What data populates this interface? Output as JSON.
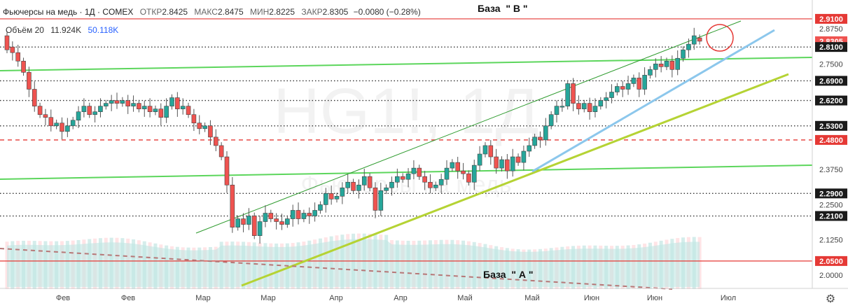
{
  "header": {
    "symbol": "Фьючерсы на медь · 1Д · COMEX",
    "open_label": "ОТКР",
    "open": "2.8425",
    "high_label": "МАКС",
    "high": "2.8475",
    "low_label": "МИН",
    "low": "2.8225",
    "close_label": "ЗАКР",
    "close": "2.8305",
    "change": "−0.0080 (−0.28%)"
  },
  "volume": {
    "label": "Объём 20",
    "value": "11.924K",
    "ma_value": "50.118K"
  },
  "annotations": {
    "base_b": "База  \" В \"",
    "base_a": "База  \" А \""
  },
  "watermark": {
    "main": "HG1!, 1Д",
    "sub": "Фьючерсы на медь"
  },
  "colors": {
    "up": "#26a69a",
    "down": "#ef5350",
    "level_line": "#e53935",
    "channel_green": "#5cd65c",
    "trend_yellow_green": "#b5d334",
    "trend_blue": "#8cc7ec",
    "channel_dark_green": "#2e9b2e",
    "volume_area": "#bfe6e3"
  },
  "chart_data": {
    "type": "candlestick",
    "y_axis": {
      "ticks": [
        "2.8750",
        "2.7500",
        "2.3750",
        "2.2500",
        "2.1250",
        "2.0000"
      ],
      "price_labels": [
        "2.9100",
        "2.8305",
        "2.8100",
        "2.6900",
        "2.6200",
        "2.5300",
        "2.4800",
        "2.2900",
        "2.2100",
        "2.0500"
      ]
    },
    "x_axis": {
      "ticks": [
        "Фев",
        "Фев",
        "Мар",
        "Мар",
        "Апр",
        "Апр",
        "Май",
        "Май",
        "Июн",
        "Июн",
        "Июл"
      ]
    },
    "levels": [
      {
        "price": 2.91,
        "style": "solid"
      },
      {
        "price": 2.81,
        "style": "dotted"
      },
      {
        "price": 2.69,
        "style": "dotted"
      },
      {
        "price": 2.62,
        "style": "dotted"
      },
      {
        "price": 2.53,
        "style": "dotted"
      },
      {
        "price": 2.48,
        "style": "dashed"
      },
      {
        "price": 2.29,
        "style": "dotted"
      },
      {
        "price": 2.21,
        "style": "dotted"
      },
      {
        "price": 2.05,
        "style": "solid"
      }
    ],
    "candles": [
      {
        "o": 2.85,
        "c": 2.8
      },
      {
        "o": 2.81,
        "c": 2.79
      },
      {
        "o": 2.79,
        "c": 2.76
      },
      {
        "o": 2.76,
        "c": 2.72
      },
      {
        "o": 2.72,
        "c": 2.66
      },
      {
        "o": 2.66,
        "c": 2.6
      },
      {
        "o": 2.6,
        "c": 2.57
      },
      {
        "o": 2.57,
        "c": 2.56
      },
      {
        "o": 2.56,
        "c": 2.53
      },
      {
        "o": 2.53,
        "c": 2.54
      },
      {
        "o": 2.54,
        "c": 2.51
      },
      {
        "o": 2.51,
        "c": 2.53
      },
      {
        "o": 2.53,
        "c": 2.55
      },
      {
        "o": 2.55,
        "c": 2.58
      },
      {
        "o": 2.58,
        "c": 2.6
      },
      {
        "o": 2.6,
        "c": 2.57
      },
      {
        "o": 2.57,
        "c": 2.58
      },
      {
        "o": 2.58,
        "c": 2.6
      },
      {
        "o": 2.6,
        "c": 2.61
      },
      {
        "o": 2.61,
        "c": 2.62
      },
      {
        "o": 2.62,
        "c": 2.61
      },
      {
        "o": 2.61,
        "c": 2.62
      },
      {
        "o": 2.62,
        "c": 2.6
      },
      {
        "o": 2.6,
        "c": 2.61
      },
      {
        "o": 2.61,
        "c": 2.59
      },
      {
        "o": 2.59,
        "c": 2.6
      },
      {
        "o": 2.6,
        "c": 2.58
      },
      {
        "o": 2.58,
        "c": 2.59
      },
      {
        "o": 2.59,
        "c": 2.56
      },
      {
        "o": 2.56,
        "c": 2.6
      },
      {
        "o": 2.6,
        "c": 2.63
      },
      {
        "o": 2.63,
        "c": 2.59
      },
      {
        "o": 2.59,
        "c": 2.6
      },
      {
        "o": 2.6,
        "c": 2.57
      },
      {
        "o": 2.57,
        "c": 2.54
      },
      {
        "o": 2.54,
        "c": 2.52
      },
      {
        "o": 2.52,
        "c": 2.53
      },
      {
        "o": 2.53,
        "c": 2.49
      },
      {
        "o": 2.49,
        "c": 2.46
      },
      {
        "o": 2.46,
        "c": 2.42
      },
      {
        "o": 2.42,
        "c": 2.32
      },
      {
        "o": 2.32,
        "c": 2.17
      },
      {
        "o": 2.17,
        "c": 2.2
      },
      {
        "o": 2.2,
        "c": 2.18
      },
      {
        "o": 2.18,
        "c": 2.21
      },
      {
        "o": 2.21,
        "c": 2.14
      },
      {
        "o": 2.14,
        "c": 2.19
      },
      {
        "o": 2.19,
        "c": 2.22
      },
      {
        "o": 2.22,
        "c": 2.2
      },
      {
        "o": 2.2,
        "c": 2.19
      },
      {
        "o": 2.19,
        "c": 2.18
      },
      {
        "o": 2.18,
        "c": 2.2
      },
      {
        "o": 2.2,
        "c": 2.23
      },
      {
        "o": 2.23,
        "c": 2.2
      },
      {
        "o": 2.2,
        "c": 2.22
      },
      {
        "o": 2.22,
        "c": 2.21
      },
      {
        "o": 2.21,
        "c": 2.23
      },
      {
        "o": 2.23,
        "c": 2.25
      },
      {
        "o": 2.25,
        "c": 2.29
      },
      {
        "o": 2.29,
        "c": 2.27
      },
      {
        "o": 2.27,
        "c": 2.28
      },
      {
        "o": 2.28,
        "c": 2.31
      },
      {
        "o": 2.31,
        "c": 2.33
      },
      {
        "o": 2.33,
        "c": 2.3
      },
      {
        "o": 2.3,
        "c": 2.32
      },
      {
        "o": 2.32,
        "c": 2.35
      },
      {
        "o": 2.35,
        "c": 2.31
      },
      {
        "o": 2.31,
        "c": 2.23
      },
      {
        "o": 2.23,
        "c": 2.3
      },
      {
        "o": 2.3,
        "c": 2.31
      },
      {
        "o": 2.31,
        "c": 2.33
      },
      {
        "o": 2.33,
        "c": 2.35
      },
      {
        "o": 2.35,
        "c": 2.34
      },
      {
        "o": 2.34,
        "c": 2.36
      },
      {
        "o": 2.36,
        "c": 2.38
      },
      {
        "o": 2.38,
        "c": 2.35
      },
      {
        "o": 2.35,
        "c": 2.33
      },
      {
        "o": 2.33,
        "c": 2.31
      },
      {
        "o": 2.31,
        "c": 2.32
      },
      {
        "o": 2.32,
        "c": 2.34
      },
      {
        "o": 2.34,
        "c": 2.38
      },
      {
        "o": 2.38,
        "c": 2.4
      },
      {
        "o": 2.4,
        "c": 2.37
      },
      {
        "o": 2.37,
        "c": 2.36
      },
      {
        "o": 2.36,
        "c": 2.33
      },
      {
        "o": 2.33,
        "c": 2.39
      },
      {
        "o": 2.39,
        "c": 2.43
      },
      {
        "o": 2.43,
        "c": 2.46
      },
      {
        "o": 2.46,
        "c": 2.42
      },
      {
        "o": 2.42,
        "c": 2.38
      },
      {
        "o": 2.38,
        "c": 2.41
      },
      {
        "o": 2.41,
        "c": 2.37
      },
      {
        "o": 2.37,
        "c": 2.42
      },
      {
        "o": 2.42,
        "c": 2.4
      },
      {
        "o": 2.4,
        "c": 2.44
      },
      {
        "o": 2.44,
        "c": 2.46
      },
      {
        "o": 2.46,
        "c": 2.49
      },
      {
        "o": 2.49,
        "c": 2.48
      },
      {
        "o": 2.48,
        "c": 2.53
      },
      {
        "o": 2.53,
        "c": 2.57
      },
      {
        "o": 2.57,
        "c": 2.6
      },
      {
        "o": 2.6,
        "c": 2.6
      },
      {
        "o": 2.6,
        "c": 2.68
      },
      {
        "o": 2.68,
        "c": 2.61
      },
      {
        "o": 2.61,
        "c": 2.59
      },
      {
        "o": 2.59,
        "c": 2.61
      },
      {
        "o": 2.61,
        "c": 2.58
      },
      {
        "o": 2.58,
        "c": 2.6
      },
      {
        "o": 2.6,
        "c": 2.62
      },
      {
        "o": 2.62,
        "c": 2.63
      },
      {
        "o": 2.63,
        "c": 2.65
      },
      {
        "o": 2.65,
        "c": 2.67
      },
      {
        "o": 2.67,
        "c": 2.66
      },
      {
        "o": 2.66,
        "c": 2.68
      },
      {
        "o": 2.68,
        "c": 2.7
      },
      {
        "o": 2.7,
        "c": 2.66
      },
      {
        "o": 2.66,
        "c": 2.71
      },
      {
        "o": 2.71,
        "c": 2.73
      },
      {
        "o": 2.73,
        "c": 2.75
      },
      {
        "o": 2.75,
        "c": 2.74
      },
      {
        "o": 2.74,
        "c": 2.76
      },
      {
        "o": 2.76,
        "c": 2.73
      },
      {
        "o": 2.73,
        "c": 2.77
      },
      {
        "o": 2.77,
        "c": 2.8
      },
      {
        "o": 2.8,
        "c": 2.82
      },
      {
        "o": 2.82,
        "c": 2.85
      },
      {
        "o": 2.8425,
        "c": 2.8305
      }
    ]
  }
}
